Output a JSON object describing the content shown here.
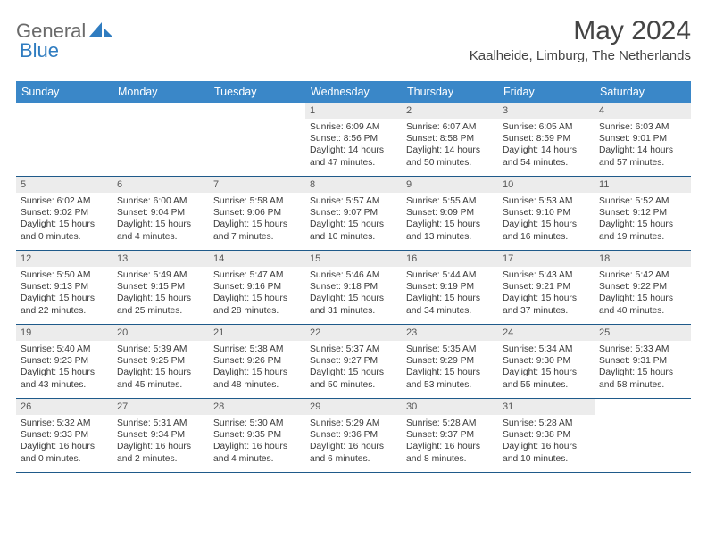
{
  "brand": {
    "part1": "General",
    "part2": "Blue"
  },
  "title": "May 2024",
  "location": "Kaalheide, Limburg, The Netherlands",
  "colors": {
    "headerBg": "#3a87c8",
    "headerText": "#ffffff",
    "dayNumBg": "#ececec",
    "rowBorder": "#1f5a8a",
    "bodyText": "#3a3a3a",
    "brandGray": "#6a6a6a",
    "brandBlue": "#2f7cc0"
  },
  "dayNames": [
    "Sunday",
    "Monday",
    "Tuesday",
    "Wednesday",
    "Thursday",
    "Friday",
    "Saturday"
  ],
  "weeks": [
    [
      {
        "n": "",
        "sr": "",
        "ss": "",
        "dl": ""
      },
      {
        "n": "",
        "sr": "",
        "ss": "",
        "dl": ""
      },
      {
        "n": "",
        "sr": "",
        "ss": "",
        "dl": ""
      },
      {
        "n": "1",
        "sr": "Sunrise: 6:09 AM",
        "ss": "Sunset: 8:56 PM",
        "dl": "Daylight: 14 hours and 47 minutes."
      },
      {
        "n": "2",
        "sr": "Sunrise: 6:07 AM",
        "ss": "Sunset: 8:58 PM",
        "dl": "Daylight: 14 hours and 50 minutes."
      },
      {
        "n": "3",
        "sr": "Sunrise: 6:05 AM",
        "ss": "Sunset: 8:59 PM",
        "dl": "Daylight: 14 hours and 54 minutes."
      },
      {
        "n": "4",
        "sr": "Sunrise: 6:03 AM",
        "ss": "Sunset: 9:01 PM",
        "dl": "Daylight: 14 hours and 57 minutes."
      }
    ],
    [
      {
        "n": "5",
        "sr": "Sunrise: 6:02 AM",
        "ss": "Sunset: 9:02 PM",
        "dl": "Daylight: 15 hours and 0 minutes."
      },
      {
        "n": "6",
        "sr": "Sunrise: 6:00 AM",
        "ss": "Sunset: 9:04 PM",
        "dl": "Daylight: 15 hours and 4 minutes."
      },
      {
        "n": "7",
        "sr": "Sunrise: 5:58 AM",
        "ss": "Sunset: 9:06 PM",
        "dl": "Daylight: 15 hours and 7 minutes."
      },
      {
        "n": "8",
        "sr": "Sunrise: 5:57 AM",
        "ss": "Sunset: 9:07 PM",
        "dl": "Daylight: 15 hours and 10 minutes."
      },
      {
        "n": "9",
        "sr": "Sunrise: 5:55 AM",
        "ss": "Sunset: 9:09 PM",
        "dl": "Daylight: 15 hours and 13 minutes."
      },
      {
        "n": "10",
        "sr": "Sunrise: 5:53 AM",
        "ss": "Sunset: 9:10 PM",
        "dl": "Daylight: 15 hours and 16 minutes."
      },
      {
        "n": "11",
        "sr": "Sunrise: 5:52 AM",
        "ss": "Sunset: 9:12 PM",
        "dl": "Daylight: 15 hours and 19 minutes."
      }
    ],
    [
      {
        "n": "12",
        "sr": "Sunrise: 5:50 AM",
        "ss": "Sunset: 9:13 PM",
        "dl": "Daylight: 15 hours and 22 minutes."
      },
      {
        "n": "13",
        "sr": "Sunrise: 5:49 AM",
        "ss": "Sunset: 9:15 PM",
        "dl": "Daylight: 15 hours and 25 minutes."
      },
      {
        "n": "14",
        "sr": "Sunrise: 5:47 AM",
        "ss": "Sunset: 9:16 PM",
        "dl": "Daylight: 15 hours and 28 minutes."
      },
      {
        "n": "15",
        "sr": "Sunrise: 5:46 AM",
        "ss": "Sunset: 9:18 PM",
        "dl": "Daylight: 15 hours and 31 minutes."
      },
      {
        "n": "16",
        "sr": "Sunrise: 5:44 AM",
        "ss": "Sunset: 9:19 PM",
        "dl": "Daylight: 15 hours and 34 minutes."
      },
      {
        "n": "17",
        "sr": "Sunrise: 5:43 AM",
        "ss": "Sunset: 9:21 PM",
        "dl": "Daylight: 15 hours and 37 minutes."
      },
      {
        "n": "18",
        "sr": "Sunrise: 5:42 AM",
        "ss": "Sunset: 9:22 PM",
        "dl": "Daylight: 15 hours and 40 minutes."
      }
    ],
    [
      {
        "n": "19",
        "sr": "Sunrise: 5:40 AM",
        "ss": "Sunset: 9:23 PM",
        "dl": "Daylight: 15 hours and 43 minutes."
      },
      {
        "n": "20",
        "sr": "Sunrise: 5:39 AM",
        "ss": "Sunset: 9:25 PM",
        "dl": "Daylight: 15 hours and 45 minutes."
      },
      {
        "n": "21",
        "sr": "Sunrise: 5:38 AM",
        "ss": "Sunset: 9:26 PM",
        "dl": "Daylight: 15 hours and 48 minutes."
      },
      {
        "n": "22",
        "sr": "Sunrise: 5:37 AM",
        "ss": "Sunset: 9:27 PM",
        "dl": "Daylight: 15 hours and 50 minutes."
      },
      {
        "n": "23",
        "sr": "Sunrise: 5:35 AM",
        "ss": "Sunset: 9:29 PM",
        "dl": "Daylight: 15 hours and 53 minutes."
      },
      {
        "n": "24",
        "sr": "Sunrise: 5:34 AM",
        "ss": "Sunset: 9:30 PM",
        "dl": "Daylight: 15 hours and 55 minutes."
      },
      {
        "n": "25",
        "sr": "Sunrise: 5:33 AM",
        "ss": "Sunset: 9:31 PM",
        "dl": "Daylight: 15 hours and 58 minutes."
      }
    ],
    [
      {
        "n": "26",
        "sr": "Sunrise: 5:32 AM",
        "ss": "Sunset: 9:33 PM",
        "dl": "Daylight: 16 hours and 0 minutes."
      },
      {
        "n": "27",
        "sr": "Sunrise: 5:31 AM",
        "ss": "Sunset: 9:34 PM",
        "dl": "Daylight: 16 hours and 2 minutes."
      },
      {
        "n": "28",
        "sr": "Sunrise: 5:30 AM",
        "ss": "Sunset: 9:35 PM",
        "dl": "Daylight: 16 hours and 4 minutes."
      },
      {
        "n": "29",
        "sr": "Sunrise: 5:29 AM",
        "ss": "Sunset: 9:36 PM",
        "dl": "Daylight: 16 hours and 6 minutes."
      },
      {
        "n": "30",
        "sr": "Sunrise: 5:28 AM",
        "ss": "Sunset: 9:37 PM",
        "dl": "Daylight: 16 hours and 8 minutes."
      },
      {
        "n": "31",
        "sr": "Sunrise: 5:28 AM",
        "ss": "Sunset: 9:38 PM",
        "dl": "Daylight: 16 hours and 10 minutes."
      },
      {
        "n": "",
        "sr": "",
        "ss": "",
        "dl": ""
      }
    ]
  ]
}
